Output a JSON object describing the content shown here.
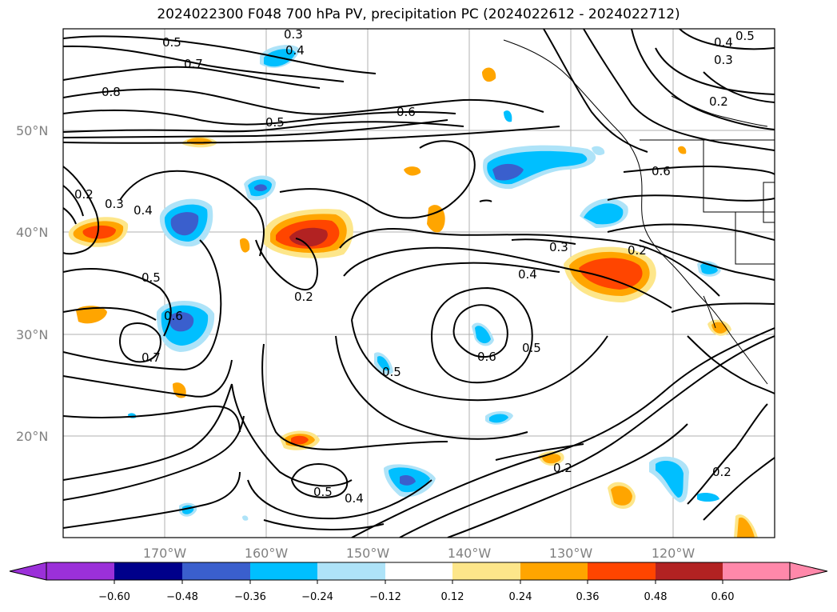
{
  "title": "2024022300 F048 700 hPa PV, precipitation PC (2024022612 - 2024022712)",
  "lat_labels": [
    "50°N",
    "40°N",
    "30°N",
    "20°N"
  ],
  "lon_labels": [
    "170°W",
    "160°W",
    "150°W",
    "140°W",
    "130°W",
    "120°W"
  ],
  "contour_labels": [
    "0.5",
    "0.4",
    "0.3",
    "0.7",
    "0.8",
    "0.5",
    "0.6",
    "0.4",
    "0.3",
    "0.2",
    "0.6",
    "0.2",
    "0.3",
    "0.4",
    "0.5",
    "0.2",
    "0.3",
    "0.4",
    "0.6",
    "0.7",
    "0.5",
    "0.5",
    "0.2",
    "0.6",
    "0.5",
    "0.4",
    "0.2",
    "0.2",
    "0.5"
  ],
  "colorbar": {
    "ticks": [
      "−0.60",
      "−0.48",
      "−0.36",
      "−0.24",
      "−0.12",
      "0.12",
      "0.24",
      "0.36",
      "0.48",
      "0.60"
    ],
    "colors": [
      "#9b30d9",
      "#00008b",
      "#3a5fcd",
      "#00bfff",
      "#aee3f8",
      "#ffffff",
      "#fde68a",
      "#ffa500",
      "#ff4500",
      "#b22222",
      "#ff88aa"
    ]
  }
}
